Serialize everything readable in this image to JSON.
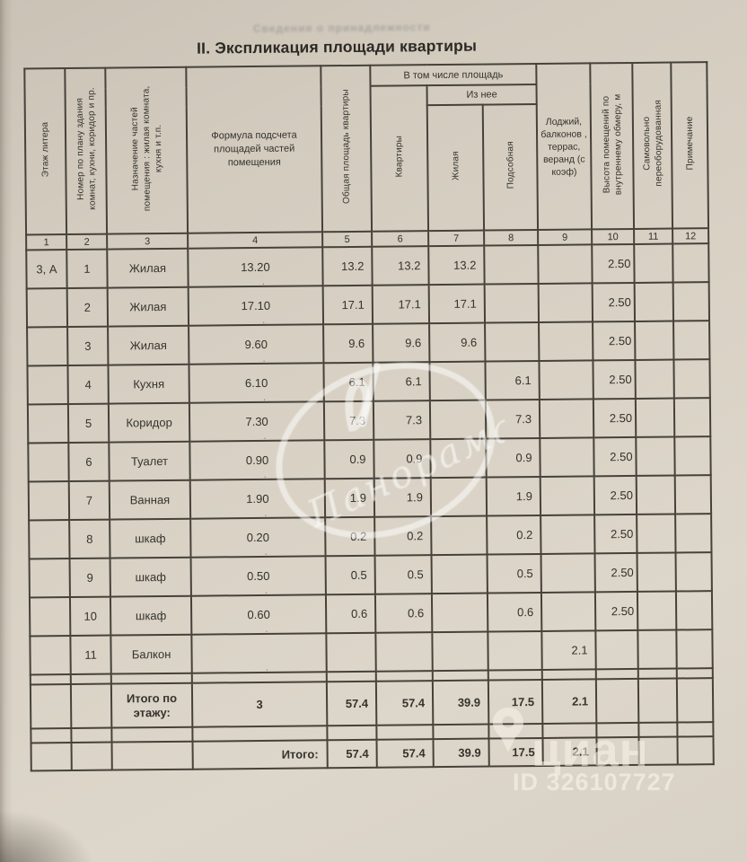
{
  "page": {
    "title": "II.  Экспликация площади квартиры",
    "ghost_text": "Сведения о принадлежности"
  },
  "watermarks": {
    "stamp_text": "Панорама",
    "cian_text": "циан",
    "cian_id": "ID 326107727"
  },
  "colors": {
    "paper": "#d8d1c4",
    "table_line": "#46423a",
    "ink": "#34322c",
    "watermark_white": "rgba(255,255,255,0.5)"
  },
  "table": {
    "group_headers": {
      "including": "В том числе площадь",
      "of_it": "Из нее"
    },
    "columns": [
      {
        "num": "1",
        "label": "Этаж литера"
      },
      {
        "num": "2",
        "label": "Номер по плану здания комнат, кухни, коридор и пр."
      },
      {
        "num": "3",
        "label": "Назначение частей помещения : жилая комната, кухня и т.п."
      },
      {
        "num": "4",
        "label": "Формула подсчета площадей частей помещения"
      },
      {
        "num": "5",
        "label": "Общая площадь квартиры"
      },
      {
        "num": "6",
        "label": "Квартиры"
      },
      {
        "num": "7",
        "label": "Жилая"
      },
      {
        "num": "8",
        "label": "Подсобная"
      },
      {
        "num": "9",
        "label": "Лоджий, балконов , террас, веранд (с коэф)"
      },
      {
        "num": "10",
        "label": "Высота помещений по внутреннему обмеру, м"
      },
      {
        "num": "11",
        "label": "Самовольно переоборудованная"
      },
      {
        "num": "12",
        "label": "Примечание"
      }
    ],
    "rows": [
      {
        "class": "body-row",
        "name": "room-row",
        "cells": [
          "3, А",
          "1",
          "Жилая",
          "13.20",
          "13.2",
          "13.2",
          "13.2",
          "",
          "",
          "2.50",
          "",
          ""
        ]
      },
      {
        "class": "body-row",
        "name": "room-row",
        "cells": [
          "",
          "2",
          "Жилая",
          "17.10",
          "17.1",
          "17.1",
          "17.1",
          "",
          "",
          "2.50",
          "",
          ""
        ]
      },
      {
        "class": "body-row",
        "name": "room-row",
        "cells": [
          "",
          "3",
          "Жилая",
          "9.60",
          "9.6",
          "9.6",
          "9.6",
          "",
          "",
          "2.50",
          "",
          ""
        ]
      },
      {
        "class": "body-row",
        "name": "room-row",
        "cells": [
          "",
          "4",
          "Кухня",
          "6.10",
          "6.1",
          "6.1",
          "",
          "6.1",
          "",
          "2.50",
          "",
          ""
        ]
      },
      {
        "class": "body-row",
        "name": "room-row",
        "cells": [
          "",
          "5",
          "Коридор",
          "7.30",
          "7.3",
          "7.3",
          "",
          "7.3",
          "",
          "2.50",
          "",
          ""
        ]
      },
      {
        "class": "body-row",
        "name": "room-row",
        "cells": [
          "",
          "6",
          "Туалет",
          "0.90",
          "0.9",
          "0.9",
          "",
          "0.9",
          "",
          "2.50",
          "",
          ""
        ]
      },
      {
        "class": "body-row",
        "name": "room-row",
        "cells": [
          "",
          "7",
          "Ванная",
          "1.90",
          "1.9",
          "1.9",
          "",
          "1.9",
          "",
          "2.50",
          "",
          ""
        ]
      },
      {
        "class": "body-row",
        "name": "room-row",
        "cells": [
          "",
          "8",
          "шкаф",
          "0.20",
          "0.2",
          "0.2",
          "",
          "0.2",
          "",
          "2.50",
          "",
          ""
        ]
      },
      {
        "class": "body-row",
        "name": "room-row",
        "cells": [
          "",
          "9",
          "шкаф",
          "0.50",
          "0.5",
          "0.5",
          "",
          "0.5",
          "",
          "2.50",
          "",
          ""
        ]
      },
      {
        "class": "body-row",
        "name": "room-row",
        "cells": [
          "",
          "10",
          "шкаф",
          "0.60",
          "0.6",
          "0.6",
          "",
          "0.6",
          "",
          "2.50",
          "",
          ""
        ]
      },
      {
        "class": "body-row",
        "name": "room-row",
        "cells": [
          "",
          "11",
          "Балкон",
          "",
          "",
          "",
          "",
          "",
          "2.1",
          "",
          "",
          ""
        ]
      },
      {
        "class": "spacer-row sp-a",
        "name": "spacer-row",
        "cells": [
          "",
          "",
          "",
          "",
          "",
          "",
          "",
          "",
          "",
          "",
          "",
          ""
        ]
      },
      {
        "class": "total-row",
        "name": "floor-total-row",
        "cells": [
          "",
          "",
          "Итого по этажу:",
          "3",
          "57.4",
          "57.4",
          "39.9",
          "17.5",
          "2.1",
          "",
          "",
          ""
        ]
      },
      {
        "class": "spacer-row sp-b",
        "name": "spacer-row",
        "cells": [
          "",
          "",
          "",
          "",
          "",
          "",
          "",
          "",
          "",
          "",
          "",
          ""
        ]
      },
      {
        "class": "grand-total-row",
        "name": "grand-total-row",
        "cells": [
          "",
          "",
          "",
          "Итого:",
          "57.4",
          "57.4",
          "39.9",
          "17.5",
          "2.1",
          "",
          "",
          ""
        ]
      }
    ]
  }
}
